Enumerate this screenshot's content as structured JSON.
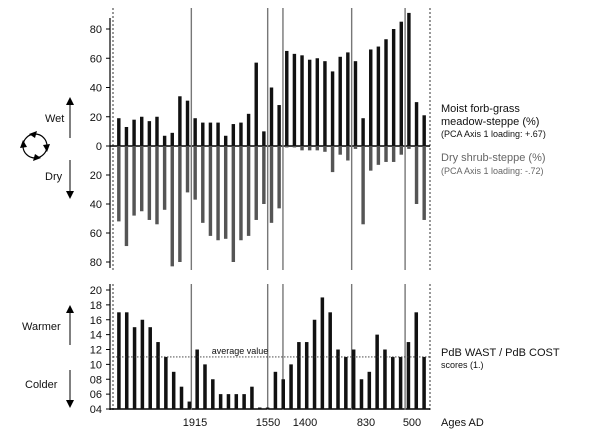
{
  "chart_data": [
    {
      "type": "bar",
      "panel": "top",
      "y_ticks_upper": [
        0,
        20,
        40,
        60,
        80
      ],
      "y_ticks_lower": [
        20,
        40,
        60,
        80
      ],
      "ylim": [
        -80,
        95
      ],
      "side_labels": {
        "up": "Wet",
        "down": "Dry"
      },
      "series": [
        {
          "name": "Moist forb-grass meadow-steppe (%)",
          "label_lines": [
            "Moist forb-grass",
            "meadow-steppe (%)"
          ],
          "note": "(PCA Axis 1 loading: +.67)",
          "color": "#111111",
          "values": [
            19,
            13,
            18,
            20,
            17,
            20,
            7,
            9,
            34,
            31,
            19,
            16,
            16,
            16,
            7,
            15,
            16,
            22,
            57,
            10,
            40,
            28,
            65,
            63,
            62,
            59,
            60,
            58,
            51,
            61,
            64,
            58,
            19,
            66,
            68,
            73,
            80,
            85,
            91,
            30,
            21
          ]
        },
        {
          "name": "Dry shrub-steppe (%)",
          "note": "(PCA Axis 1 loading: -.72)",
          "color": "#555555",
          "values": [
            52,
            69,
            48,
            45,
            51,
            54,
            44,
            83,
            80,
            32,
            37,
            53,
            62,
            65,
            64,
            80,
            65,
            62,
            51,
            40,
            53,
            43,
            1,
            1,
            3,
            3,
            3,
            4,
            18,
            6,
            10,
            2,
            54,
            17,
            13,
            11,
            11,
            6,
            2,
            40,
            51
          ]
        }
      ],
      "vlines_after_bar": [
        9,
        19,
        21,
        30,
        37
      ]
    },
    {
      "type": "bar",
      "panel": "bottom",
      "y_ticks": [
        "20",
        "18",
        "16",
        "14",
        "12",
        "10",
        "08",
        "06",
        "04"
      ],
      "ylim": [
        4,
        21
      ],
      "side_labels": {
        "up": "Warmer",
        "down": "Colder"
      },
      "reference_line": {
        "value": 11,
        "label": "average value"
      },
      "series": [
        {
          "name": "PdB WAST / PdB COST",
          "note": "scores (1.)",
          "color": "#111111",
          "values": [
            17,
            17,
            15,
            16,
            15,
            13,
            11,
            9,
            7,
            5,
            12,
            10,
            8,
            6,
            6,
            6,
            6,
            7,
            4.2,
            4.2,
            9,
            8,
            10,
            13,
            13,
            16,
            19,
            17,
            12,
            11,
            12,
            8,
            9,
            14,
            12,
            11,
            11,
            13,
            17,
            11
          ]
        }
      ],
      "x_tick_labels": [
        "1915",
        "1550",
        "1400",
        "830",
        "500"
      ],
      "x_axis_label": "Ages AD"
    }
  ]
}
